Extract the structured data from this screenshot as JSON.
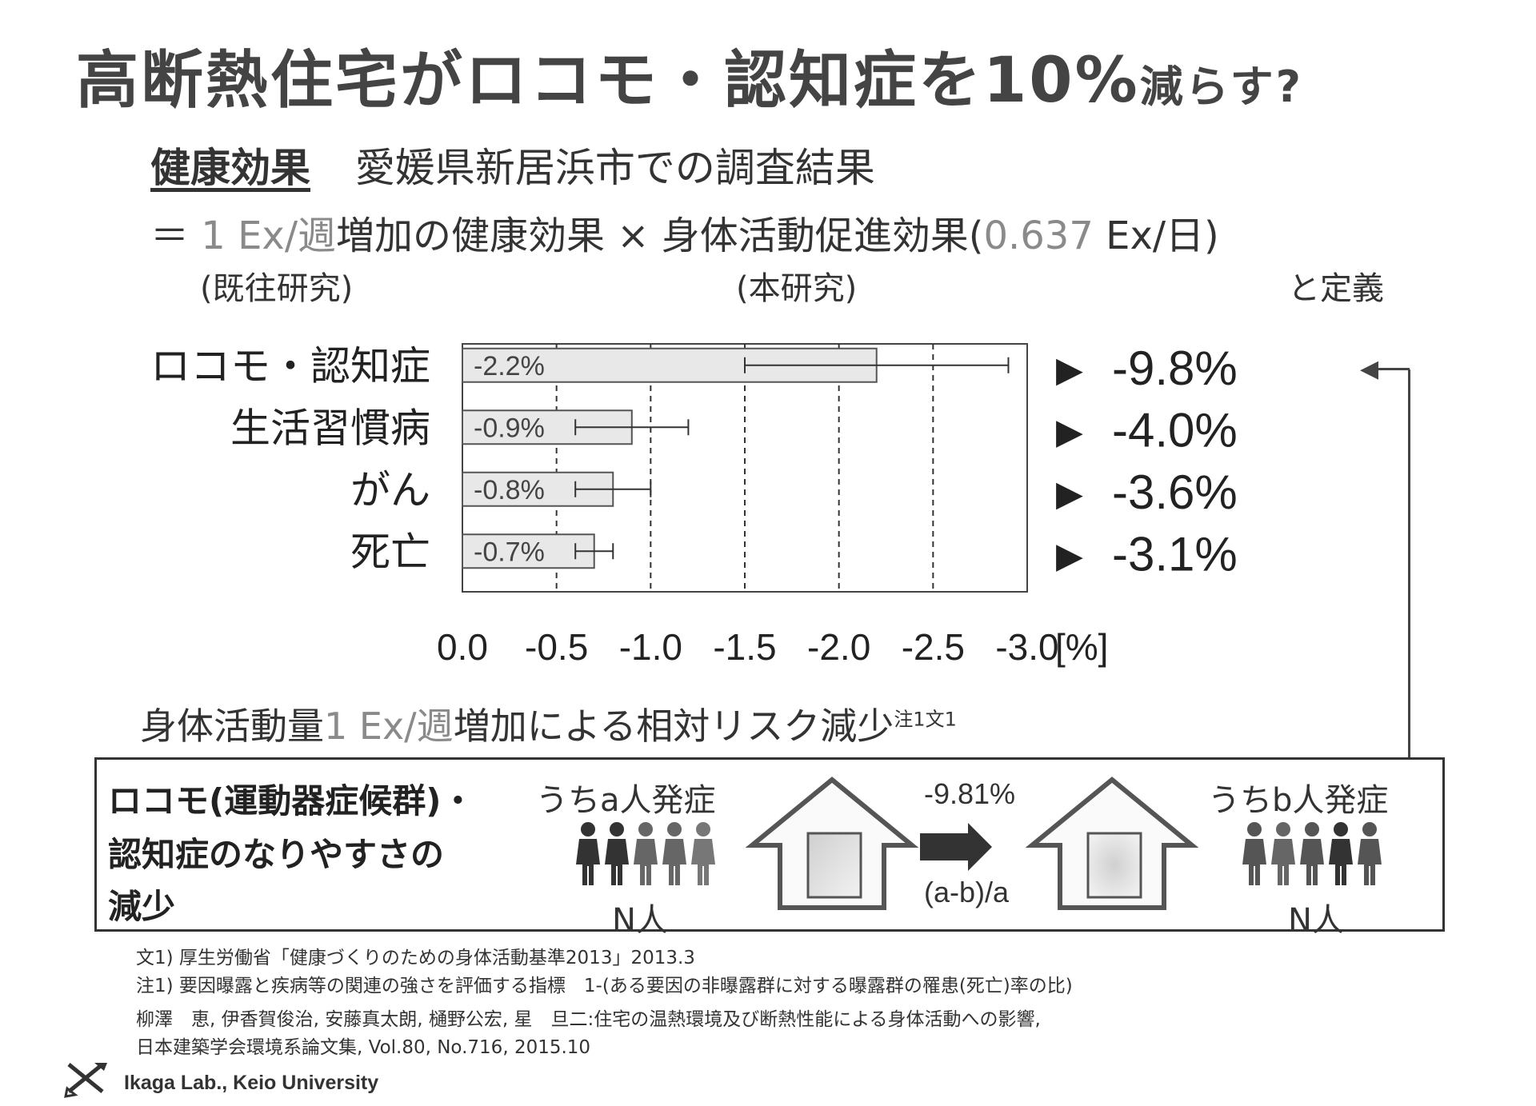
{
  "title": {
    "main": "高断熱住宅がロコモ・認知症を10%",
    "suffix": "減らす?"
  },
  "health_section": {
    "label": "健康効果",
    "survey": "愛媛県新居浜市での調査結果"
  },
  "formula": {
    "equals": "＝",
    "term1_faint": "1 Ex/週",
    "term1_rest": "増加の健康効果 × 身体活動促進効果(",
    "term2_faint": "0.637",
    "term2_rest": " Ex/日)",
    "sub_prior": "(既往研究)",
    "sub_this": "(本研究)",
    "sub_def": "と定義"
  },
  "chart_data": {
    "type": "bar",
    "orientation": "horizontal",
    "categories": [
      "ロコモ・認知症",
      "生活習慣病",
      "がん",
      "死亡"
    ],
    "values": [
      -2.2,
      -0.9,
      -0.8,
      -0.7
    ],
    "value_labels": [
      "-2.2%",
      "-0.9%",
      "-0.8%",
      "-0.7%"
    ],
    "error_ranges": [
      [
        -1.5,
        -2.9
      ],
      [
        -0.6,
        -1.2
      ],
      [
        -0.6,
        -1.0
      ],
      [
        -0.6,
        -0.8
      ]
    ],
    "xlim": [
      0.0,
      -3.0
    ],
    "x_ticks": [
      "0.0",
      "-0.5",
      "-1.0",
      "-1.5",
      "-2.0",
      "-2.5",
      "-3.0"
    ],
    "x_unit": "[%]",
    "xlabel_main": "身体活動量",
    "xlabel_faint": "1 Ex/週",
    "xlabel_rest": "増加による相対リスク減少",
    "xlabel_note": "注1文1",
    "grid": "vertical-dashed",
    "results": [
      "-9.8%",
      "-4.0%",
      "-3.6%",
      "-3.1%"
    ],
    "result_marker": "▶",
    "colors": {
      "bar_fill": "#e8e8e8",
      "bar_stroke": "#555555",
      "grid": "#333333"
    }
  },
  "lower_panel": {
    "line1": "ロコモ(運動器症候群)・",
    "line2": "認知症のなりやすさの",
    "line3": "減少",
    "of_a": "うちa人発症",
    "of_b": "うちb人発症",
    "n_left": "N人",
    "n_right": "N人",
    "reduction_value": "-9.81%",
    "reduction_formula": "(a-b)/a",
    "icons": [
      "house-icon",
      "person-icon",
      "right-arrow-icon"
    ]
  },
  "references": {
    "ref1": "文1) 厚生労働省「健康づくりのための身体活動基準2013」2013.3",
    "ref2": "注1) 要因曝露と疾病等の関連の強さを評価する指標　1-(ある要因の非曝露群に対する曝露群の罹患(死亡)率の比)",
    "ref3": "柳澤　恵, 伊香賀俊治, 安藤真太朗, 樋野公宏, 星　旦二:住宅の温熱環境及び断熱性能による身体活動への影響,",
    "ref4": "日本建築学会環境系論文集, Vol.80, No.716, 2015.10"
  },
  "footer": {
    "lab": "Ikaga Lab., Keio University"
  }
}
